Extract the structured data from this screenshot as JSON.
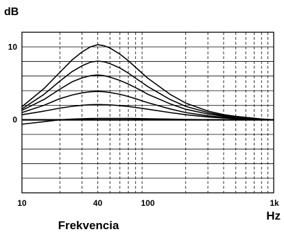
{
  "chart_data": {
    "type": "line",
    "title": "",
    "xlabel": "Frekvencia",
    "xunit": "Hz",
    "ylabel": "",
    "yunit": "dB",
    "xscale": "log",
    "xlim": [
      10,
      1000
    ],
    "ylim": [
      -10,
      12
    ],
    "x_tick_labels": [
      {
        "value": 10,
        "label": "10"
      },
      {
        "value": 40,
        "label": "40"
      },
      {
        "value": 100,
        "label": "100"
      },
      {
        "value": 1000,
        "label": "1k"
      }
    ],
    "y_tick_labels": [
      {
        "value": 0,
        "label": "0"
      },
      {
        "value": 10,
        "label": "10"
      }
    ],
    "x_dashed_gridlines": [
      20,
      30,
      40,
      50,
      60,
      70,
      80,
      90,
      200,
      300,
      400,
      500,
      600,
      700,
      800,
      900
    ],
    "y_gridline_step": 2,
    "grid": true,
    "legend": "none",
    "series": [
      {
        "x": [
          10,
          15,
          20,
          25,
          30,
          35,
          40,
          45,
          50,
          60,
          70,
          80,
          90,
          100,
          150,
          200,
          300,
          400,
          500,
          600,
          700,
          800,
          1000
        ],
        "values": [
          -0.6,
          -0.25,
          0.0,
          0.1,
          0.15,
          0.18,
          0.2,
          0.2,
          0.2,
          0.2,
          0.2,
          0.18,
          0.16,
          0.14,
          0.1,
          0.06,
          0.02,
          0.0,
          0.0,
          0.0,
          0.0,
          0.0,
          0.0
        ]
      },
      {
        "x": [
          10,
          15,
          20,
          25,
          30,
          35,
          40,
          45,
          50,
          60,
          70,
          80,
          90,
          100,
          150,
          200,
          300,
          400,
          500,
          600,
          700,
          800,
          1000
        ],
        "values": [
          0.7,
          1.2,
          1.6,
          1.85,
          2.0,
          2.08,
          2.1,
          2.08,
          2.05,
          1.95,
          1.83,
          1.7,
          1.57,
          1.45,
          1.0,
          0.7,
          0.4,
          0.25,
          0.15,
          0.1,
          0.05,
          0.03,
          0.0
        ]
      },
      {
        "x": [
          10,
          15,
          20,
          25,
          30,
          35,
          40,
          45,
          50,
          60,
          70,
          80,
          90,
          100,
          150,
          200,
          300,
          400,
          500,
          600,
          700,
          800,
          1000
        ],
        "values": [
          1.0,
          2.0,
          2.9,
          3.4,
          3.7,
          3.85,
          3.9,
          3.85,
          3.75,
          3.5,
          3.2,
          2.9,
          2.6,
          2.35,
          1.5,
          1.0,
          0.55,
          0.35,
          0.22,
          0.15,
          0.1,
          0.05,
          0.0
        ]
      },
      {
        "x": [
          10,
          15,
          20,
          25,
          30,
          35,
          40,
          45,
          50,
          60,
          70,
          80,
          90,
          100,
          150,
          200,
          300,
          400,
          500,
          600,
          700,
          800,
          1000
        ],
        "values": [
          1.3,
          2.8,
          4.2,
          5.2,
          5.75,
          6.05,
          6.15,
          6.05,
          5.85,
          5.4,
          4.9,
          4.4,
          3.95,
          3.5,
          2.2,
          1.45,
          0.8,
          0.5,
          0.32,
          0.22,
          0.14,
          0.08,
          0.0
        ]
      },
      {
        "x": [
          10,
          15,
          20,
          25,
          30,
          35,
          40,
          45,
          50,
          60,
          70,
          80,
          90,
          100,
          150,
          200,
          300,
          400,
          500,
          600,
          700,
          800,
          1000
        ],
        "values": [
          1.5,
          3.5,
          5.3,
          6.6,
          7.4,
          7.9,
          8.05,
          7.95,
          7.7,
          7.1,
          6.4,
          5.7,
          5.1,
          4.55,
          2.8,
          1.85,
          1.0,
          0.6,
          0.4,
          0.28,
          0.18,
          0.1,
          0.0
        ]
      },
      {
        "x": [
          10,
          15,
          20,
          25,
          30,
          35,
          40,
          45,
          50,
          60,
          70,
          80,
          90,
          100,
          150,
          200,
          300,
          400,
          500,
          600,
          700,
          800,
          1000
        ],
        "values": [
          1.8,
          4.3,
          6.5,
          8.2,
          9.3,
          10.0,
          10.3,
          10.15,
          9.85,
          9.0,
          8.1,
          7.2,
          6.4,
          5.7,
          3.5,
          2.3,
          1.2,
          0.72,
          0.48,
          0.33,
          0.22,
          0.12,
          0.0
        ]
      }
    ]
  }
}
